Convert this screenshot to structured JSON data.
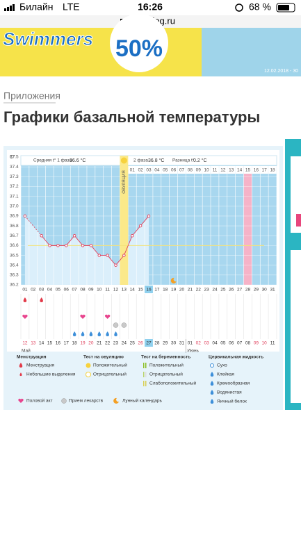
{
  "status": {
    "carrier": "Билайн",
    "network": "LTE",
    "time": "16:26",
    "battery": "68 %"
  },
  "url": "babyblog.ru",
  "banner": {
    "brand": "Swimmers",
    "discount": "50%",
    "date": "12.02.2018 - 30"
  },
  "breadcrumb": "Приложения",
  "title": "Графики базальной температуры",
  "chart_data": {
    "type": "line",
    "y_unit": "C°",
    "phase1_label": "Средняя t° 1 фаза",
    "phase1_value": "36.6 °C",
    "ovulation_label": "ОВУЛЯЦИЯ",
    "phase2_label": "2 фаза",
    "phase2_value": "36.8 °C",
    "diff_label": "Разница t°",
    "diff_value": "0.2 °C",
    "categories": [
      "01",
      "02",
      "03",
      "04",
      "05",
      "06",
      "07",
      "08",
      "09",
      "10",
      "11",
      "12",
      "13",
      "14",
      "15",
      "16",
      "17",
      "18",
      "19",
      "20",
      "21",
      "22",
      "23",
      "24",
      "25",
      "26",
      "27",
      "28",
      "29",
      "30",
      "31"
    ],
    "values": [
      36.9,
      null,
      36.7,
      36.6,
      36.6,
      36.6,
      36.7,
      36.6,
      36.6,
      36.5,
      36.5,
      36.4,
      36.5,
      36.7,
      36.8,
      36.9,
      null,
      null,
      null,
      null,
      null,
      null,
      null,
      null,
      null,
      null,
      null,
      null,
      null,
      null,
      null
    ],
    "color": "#e0405c",
    "phase2_days": [
      "01",
      "02",
      "03",
      "04",
      "05",
      "06",
      "07",
      "08",
      "09",
      "10",
      "11",
      "12",
      "13",
      "14",
      "15",
      "16",
      "17",
      "18"
    ],
    "ovulation_day": 13,
    "marked_day": 28,
    "today_day": 16,
    "coverline": 36.6,
    "dates": [
      "12",
      "13",
      "14",
      "15",
      "16",
      "17",
      "18",
      "19",
      "20",
      "21",
      "22",
      "23",
      "24",
      "25",
      "26",
      "27",
      "28",
      "29",
      "30",
      "31",
      "01",
      "02",
      "03",
      "04",
      "05",
      "06",
      "07",
      "08",
      "09",
      "10",
      "11"
    ],
    "months": [
      "Май",
      "Июнь"
    ],
    "weekend_dates": [
      0,
      1,
      7,
      8,
      14,
      15,
      21,
      22,
      28,
      29
    ],
    "ylim": [
      36.2,
      37.5
    ],
    "yticks": [
      36.2,
      36.3,
      36.4,
      36.5,
      36.6,
      36.7,
      36.8,
      36.9,
      {
        "value": 37,
        "label": "37.0"
      },
      37.1,
      37.2,
      37.3,
      37.4,
      37.5
    ],
    "events": {
      "menstruation": [
        1,
        3
      ],
      "intercourse": [
        1,
        8,
        11
      ],
      "medication": [
        12,
        13
      ],
      "cervical": [
        7,
        8,
        9,
        10,
        11,
        12
      ],
      "moon": [
        19
      ]
    }
  },
  "legend": {
    "menstruation": {
      "title": "Менструация",
      "items": [
        "Менструация",
        "Небольшие выделения"
      ]
    },
    "ovulation_test": {
      "title": "Тест на овуляцию",
      "items": [
        "Положительный",
        "Отрицательный"
      ]
    },
    "pregnancy_test": {
      "title": "Тест на беременность",
      "items": [
        "Положительный",
        "Отрицательный",
        "Слабоположительный"
      ]
    },
    "cervical": {
      "title": "Цервикальная жидкость",
      "items": [
        "Сухо",
        "Клейкая",
        "Кремообразная",
        "Водянистая",
        "Яичный белок"
      ]
    },
    "other": [
      "Половой акт",
      "Прием лекарств",
      "Лунный календарь"
    ]
  }
}
